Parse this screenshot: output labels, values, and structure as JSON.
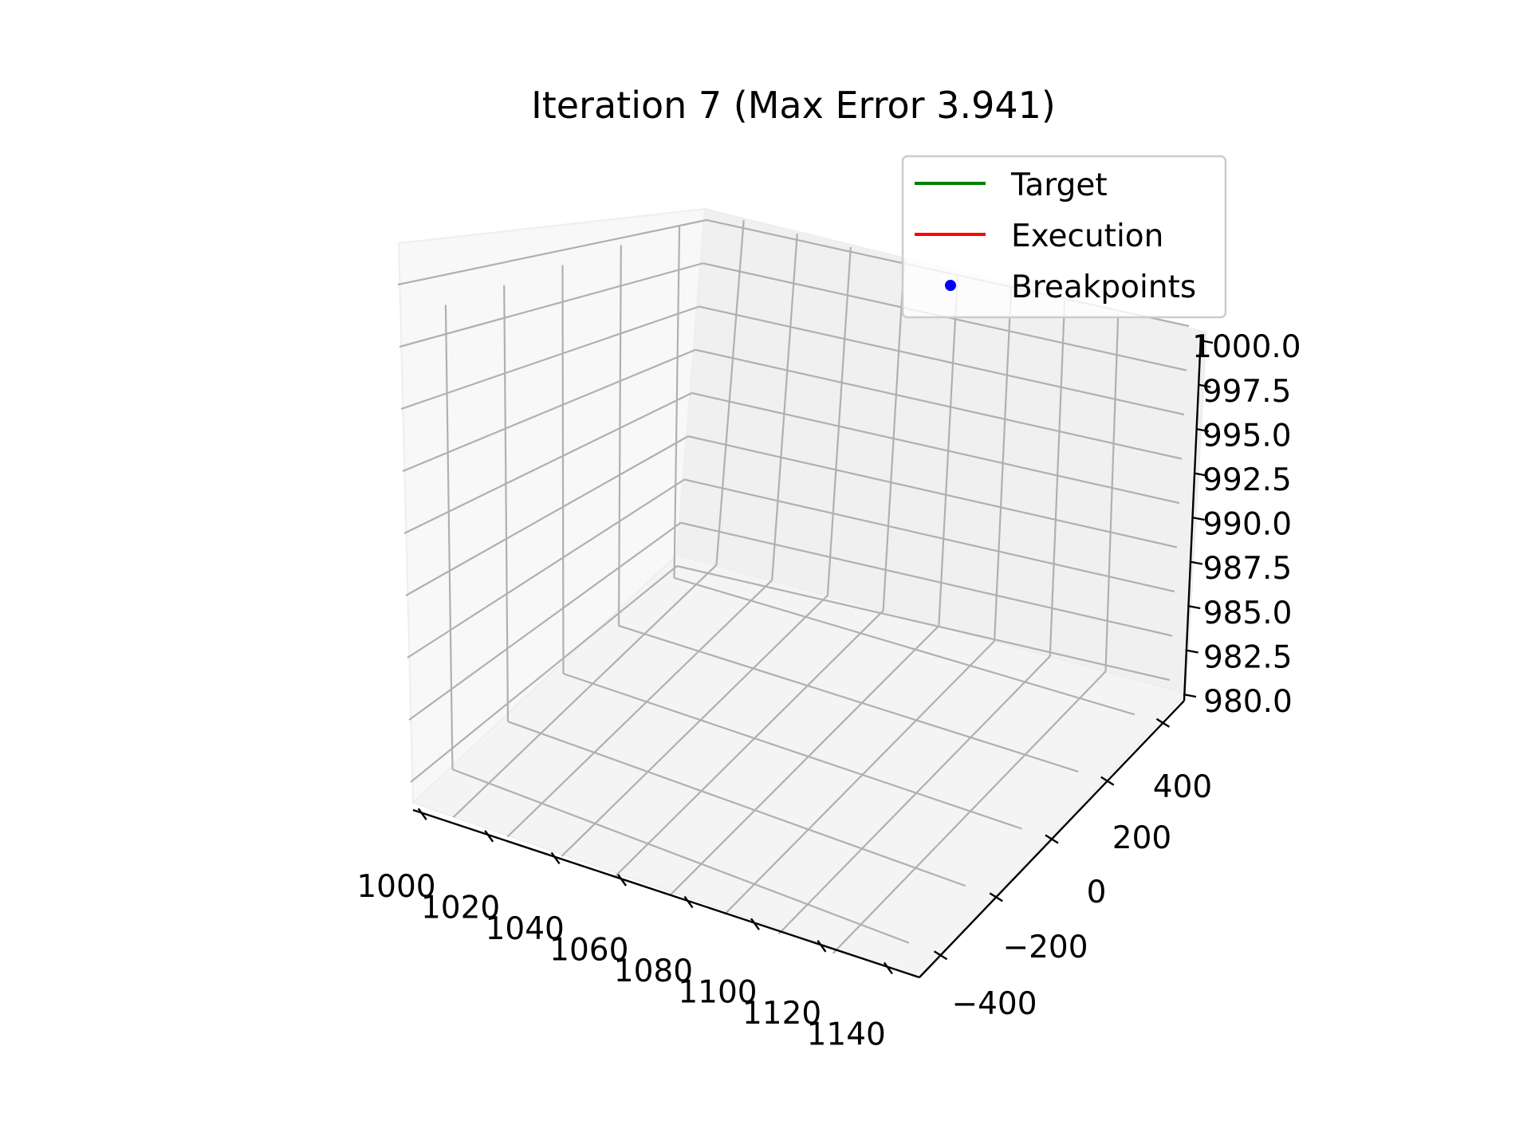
{
  "chart_data": {
    "type": "line",
    "projection": "3d",
    "title": "Iteration 7 (Max Error 3.941)",
    "xlabel": "",
    "ylabel": "",
    "zlabel": "",
    "xlim": [
      1000,
      1140
    ],
    "ylim": [
      -400,
      400
    ],
    "zlim": [
      980,
      1000
    ],
    "x_ticks": [
      "1000",
      "1020",
      "1040",
      "1060",
      "1080",
      "1100",
      "1120",
      "1140"
    ],
    "y_ticks": [
      "−400",
      "−200",
      "0",
      "200",
      "400"
    ],
    "z_ticks": [
      "980.0",
      "982.5",
      "985.0",
      "987.5",
      "990.0",
      "992.5",
      "995.0",
      "997.5",
      "1000.0"
    ],
    "grid": true,
    "legend_position": "top-right",
    "series": [
      {
        "name": "Target",
        "style": "line",
        "color": "#008000",
        "x": [],
        "y": [],
        "z": []
      },
      {
        "name": "Execution",
        "style": "line",
        "color": "#ff0000",
        "x": [],
        "y": [],
        "z": []
      },
      {
        "name": "Breakpoints",
        "style": "marker",
        "color": "#0000ff",
        "x": [],
        "y": [],
        "z": []
      }
    ]
  }
}
